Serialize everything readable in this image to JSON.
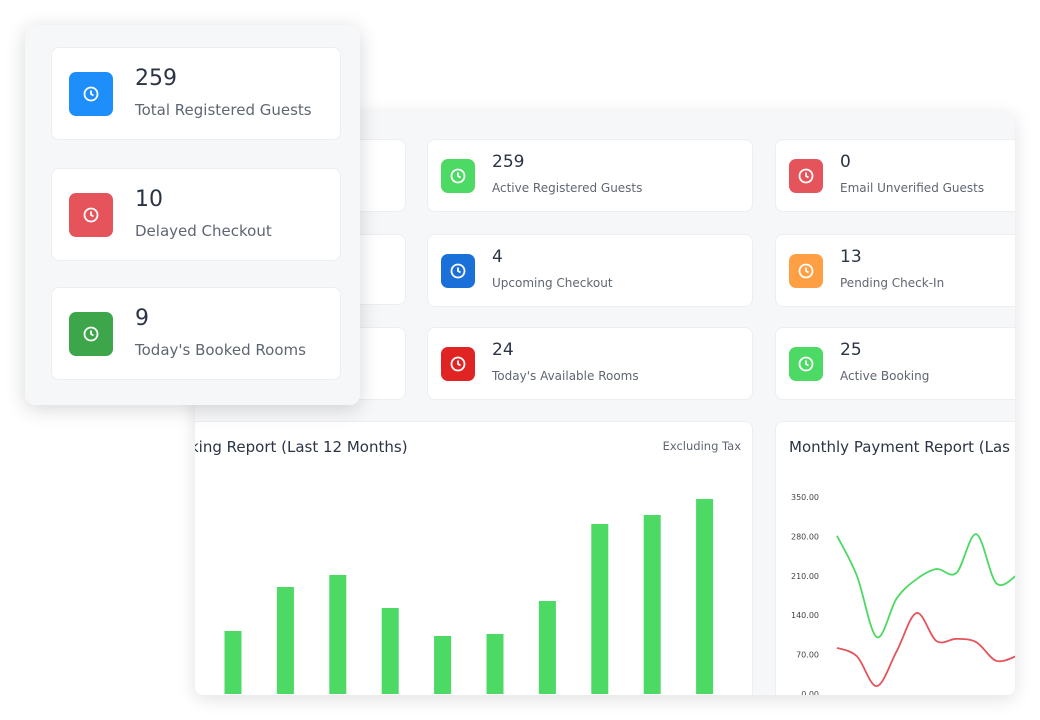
{
  "front_cards": [
    {
      "value": 259,
      "label": "Total Registered Guests",
      "color": "#1e8ffa"
    },
    {
      "value": 10,
      "label": "Delayed Checkout",
      "color": "#e5535b"
    },
    {
      "value": 9,
      "label": "Today's Booked Rooms",
      "color": "#3da64a"
    }
  ],
  "cards": [
    {
      "value": 259,
      "label": "Active Registered Guests",
      "color": "#4cd964"
    },
    {
      "value": 0,
      "label": "Email Unverified Guests",
      "color": "#e5535b"
    },
    {
      "value": 4,
      "label": "Upcoming Checkout",
      "color": "#1a6fd8"
    },
    {
      "value": 13,
      "label": "Pending Check-In",
      "color": "#ff9f43"
    },
    {
      "value": 24,
      "label": "Today's Available Rooms",
      "color": "#e02424"
    },
    {
      "value": 25,
      "label": "Active Booking",
      "color": "#4cd964"
    }
  ],
  "booking_chart": {
    "type": "bar",
    "title": "king Report (Last 12 Months)",
    "note": "Excluding Tax",
    "color": "#4cd964",
    "values": [
      63,
      107,
      119,
      86,
      58,
      60,
      93,
      170,
      179,
      195
    ]
  },
  "payment_chart": {
    "type": "line",
    "title": "Monthly Payment Report (Las",
    "ylim": [
      0,
      350
    ],
    "yticks": [
      {
        "value": 0,
        "label": "0.00"
      },
      {
        "value": 70,
        "label": "70.00"
      },
      {
        "value": 140,
        "label": "140.00"
      },
      {
        "value": 210,
        "label": "210.00"
      },
      {
        "value": 280,
        "label": "280.00"
      },
      {
        "value": 350,
        "label": "350.00"
      }
    ],
    "series": [
      {
        "color": "#4cd964",
        "values": [
          281,
          210,
          101,
          170,
          204,
          222,
          215,
          284,
          197,
          210
        ]
      },
      {
        "color": "#e5535b",
        "values": [
          82,
          67,
          14,
          76,
          144,
          94,
          98,
          92,
          59,
          67
        ]
      }
    ]
  }
}
